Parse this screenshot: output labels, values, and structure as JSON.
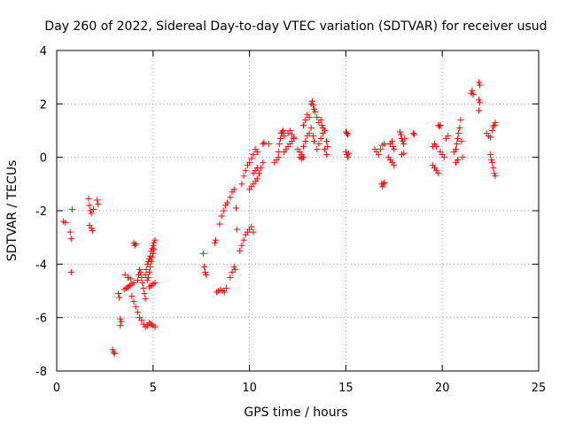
{
  "chart_data": {
    "type": "scatter",
    "title": "Day 260 of 2022, Sidereal Day-to-day VTEC variation (SDTVAR) for receiver usud",
    "xlabel": "GPS time / hours",
    "ylabel": "SDTVAR / TECUs",
    "xlim": [
      0,
      25
    ],
    "ylim": [
      -8,
      4
    ],
    "xticks": [
      0,
      5,
      10,
      15,
      20,
      25
    ],
    "yticks": [
      -8,
      -6,
      -4,
      -2,
      0,
      2,
      4
    ],
    "xtick_labels": [
      "0",
      "5",
      "10",
      "15",
      "20",
      "25"
    ],
    "ytick_labels": [
      "-8",
      "-6",
      "-4",
      "-2",
      "0",
      "2",
      "4"
    ],
    "grid": true,
    "marker": "+",
    "color": "#ff0000",
    "series": [
      {
        "name": "SDTVAR",
        "points": [
          [
            0.35,
            -2.4
          ],
          [
            0.45,
            -2.45
          ],
          [
            0.7,
            -2.8
          ],
          [
            0.75,
            -3.05
          ],
          [
            0.75,
            -4.3
          ],
          [
            0.8,
            -1.95
          ],
          [
            1.65,
            -1.55
          ],
          [
            1.7,
            -1.8
          ],
          [
            1.75,
            -2.0
          ],
          [
            1.8,
            -2.1
          ],
          [
            1.7,
            -2.55
          ],
          [
            1.8,
            -2.65
          ],
          [
            1.85,
            -2.75
          ],
          [
            1.9,
            -1.95
          ],
          [
            2.1,
            -1.6
          ],
          [
            2.15,
            -1.75
          ],
          [
            2.9,
            -7.2
          ],
          [
            2.95,
            -7.3
          ],
          [
            3.0,
            -7.35
          ],
          [
            3.2,
            -5.1
          ],
          [
            3.25,
            -5.25
          ],
          [
            3.3,
            -6.05
          ],
          [
            3.3,
            -6.3
          ],
          [
            3.35,
            -6.15
          ],
          [
            3.5,
            -4.95
          ],
          [
            3.6,
            -4.9
          ],
          [
            3.7,
            -4.85
          ],
          [
            3.8,
            -4.8
          ],
          [
            3.9,
            -4.75
          ],
          [
            4.0,
            -4.7
          ],
          [
            3.55,
            -4.4
          ],
          [
            3.7,
            -4.5
          ],
          [
            3.85,
            -4.55
          ],
          [
            4.0,
            -3.2
          ],
          [
            4.05,
            -3.3
          ],
          [
            4.1,
            -3.25
          ],
          [
            3.9,
            -5.2
          ],
          [
            4.0,
            -5.4
          ],
          [
            4.1,
            -5.6
          ],
          [
            4.2,
            -5.8
          ],
          [
            4.3,
            -6.0
          ],
          [
            4.4,
            -6.1
          ],
          [
            4.5,
            -6.25
          ],
          [
            4.6,
            -6.35
          ],
          [
            4.7,
            -6.3
          ],
          [
            4.8,
            -6.2
          ],
          [
            4.9,
            -6.25
          ],
          [
            5.0,
            -6.3
          ],
          [
            5.1,
            -6.35
          ],
          [
            4.2,
            -4.6
          ],
          [
            4.25,
            -4.4
          ],
          [
            4.3,
            -4.2
          ],
          [
            4.35,
            -4.3
          ],
          [
            4.4,
            -4.5
          ],
          [
            4.45,
            -4.7
          ],
          [
            4.5,
            -4.9
          ],
          [
            4.55,
            -5.1
          ],
          [
            4.6,
            -5.3
          ],
          [
            4.6,
            -4.4
          ],
          [
            4.65,
            -4.2
          ],
          [
            4.7,
            -4.0
          ],
          [
            4.75,
            -3.9
          ],
          [
            4.8,
            -3.8
          ],
          [
            4.85,
            -3.7
          ],
          [
            4.9,
            -3.5
          ],
          [
            4.95,
            -3.4
          ],
          [
            5.0,
            -3.3
          ],
          [
            5.05,
            -3.2
          ],
          [
            5.1,
            -3.1
          ],
          [
            4.7,
            -4.6
          ],
          [
            4.75,
            -4.5
          ],
          [
            4.8,
            -4.3
          ],
          [
            4.85,
            -4.1
          ],
          [
            4.9,
            -3.9
          ],
          [
            4.95,
            -3.75
          ],
          [
            5.0,
            -3.6
          ],
          [
            5.05,
            -3.45
          ],
          [
            4.8,
            -4.85
          ],
          [
            4.9,
            -4.8
          ],
          [
            5.0,
            -4.75
          ],
          [
            5.1,
            -4.7
          ],
          [
            7.6,
            -3.6
          ],
          [
            7.65,
            -4.1
          ],
          [
            7.7,
            -4.3
          ],
          [
            7.75,
            -4.4
          ],
          [
            8.2,
            -3.2
          ],
          [
            8.25,
            -3.1
          ],
          [
            8.3,
            -5.05
          ],
          [
            8.4,
            -5.0
          ],
          [
            8.5,
            -4.95
          ],
          [
            8.6,
            -5.0
          ],
          [
            8.7,
            -5.05
          ],
          [
            8.8,
            -4.9
          ],
          [
            8.45,
            -2.5
          ],
          [
            8.55,
            -2.2
          ],
          [
            8.65,
            -2.0
          ],
          [
            8.75,
            -1.8
          ],
          [
            8.85,
            -1.7
          ],
          [
            9.0,
            -4.5
          ],
          [
            9.1,
            -4.3
          ],
          [
            9.2,
            -4.1
          ],
          [
            9.25,
            -4.2
          ],
          [
            9.0,
            -1.5
          ],
          [
            9.1,
            -1.3
          ],
          [
            9.2,
            -1.2
          ],
          [
            9.3,
            -1.9
          ],
          [
            9.35,
            -2.7
          ],
          [
            9.5,
            -3.5
          ],
          [
            9.6,
            -3.3
          ],
          [
            9.7,
            -3.1
          ],
          [
            9.8,
            -2.9
          ],
          [
            9.9,
            -2.8
          ],
          [
            10.0,
            -2.7
          ],
          [
            10.1,
            -2.6
          ],
          [
            10.2,
            -2.8
          ],
          [
            9.6,
            -1.0
          ],
          [
            9.7,
            -0.7
          ],
          [
            9.8,
            -0.5
          ],
          [
            9.9,
            -0.3
          ],
          [
            10.0,
            -0.2
          ],
          [
            10.1,
            -0.05
          ],
          [
            10.2,
            0.1
          ],
          [
            10.3,
            0.3
          ],
          [
            10.4,
            0.2
          ],
          [
            10.0,
            -1.2
          ],
          [
            10.1,
            -1.1
          ],
          [
            10.2,
            -1.0
          ],
          [
            10.3,
            -0.9
          ],
          [
            10.4,
            -0.8
          ],
          [
            10.5,
            -0.6
          ],
          [
            10.6,
            -0.4
          ],
          [
            10.7,
            -0.2
          ],
          [
            10.2,
            -0.6
          ],
          [
            10.3,
            -0.5
          ],
          [
            10.4,
            -0.4
          ],
          [
            10.7,
            0.5
          ],
          [
            10.75,
            0.55
          ],
          [
            11.0,
            0.5
          ],
          [
            11.3,
            -0.2
          ],
          [
            11.4,
            -0.1
          ],
          [
            11.5,
            0.0
          ],
          [
            11.5,
            0.2
          ],
          [
            11.55,
            0.5
          ],
          [
            11.6,
            0.7
          ],
          [
            11.65,
            0.9
          ],
          [
            11.7,
            0.95
          ],
          [
            11.75,
            1.0
          ],
          [
            11.8,
            0.8
          ],
          [
            11.8,
            0.2
          ],
          [
            11.9,
            0.3
          ],
          [
            12.0,
            0.4
          ],
          [
            12.1,
            0.5
          ],
          [
            12.2,
            0.6
          ],
          [
            12.3,
            0.7
          ],
          [
            12.0,
            0.9
          ],
          [
            12.1,
            1.0
          ],
          [
            12.2,
            0.85
          ],
          [
            12.3,
            0.75
          ],
          [
            12.5,
            0.3
          ],
          [
            12.6,
            0.2
          ],
          [
            12.7,
            0.1
          ],
          [
            12.8,
            0.4
          ],
          [
            12.9,
            0.6
          ],
          [
            13.0,
            0.8
          ],
          [
            12.6,
            0.0
          ],
          [
            12.7,
            -0.05
          ],
          [
            12.8,
            0.0
          ],
          [
            12.8,
            1.2
          ],
          [
            12.9,
            1.4
          ],
          [
            13.0,
            1.6
          ],
          [
            13.1,
            1.5
          ],
          [
            13.1,
            0.9
          ],
          [
            13.2,
            1.1
          ],
          [
            13.3,
            0.8
          ],
          [
            13.35,
            0.6
          ],
          [
            13.2,
            2.0
          ],
          [
            13.25,
            2.1
          ],
          [
            13.3,
            1.95
          ],
          [
            13.35,
            1.8
          ],
          [
            13.4,
            1.7
          ],
          [
            13.5,
            1.5
          ],
          [
            13.6,
            1.3
          ],
          [
            13.5,
            0.3
          ],
          [
            13.6,
            0.5
          ],
          [
            13.7,
            0.7
          ],
          [
            13.8,
            0.9
          ],
          [
            13.9,
            1.0
          ],
          [
            14.0,
            0.6
          ],
          [
            14.05,
            0.4
          ],
          [
            13.7,
            1.4
          ],
          [
            13.75,
            1.2
          ],
          [
            13.8,
            1.1
          ],
          [
            13.9,
            0.3
          ],
          [
            14.0,
            0.1
          ],
          [
            15.0,
            0.95
          ],
          [
            15.05,
            0.9
          ],
          [
            15.1,
            0.85
          ],
          [
            15.0,
            0.2
          ],
          [
            15.05,
            0.1
          ],
          [
            15.1,
            0.0
          ],
          [
            15.15,
            0.15
          ],
          [
            16.5,
            0.3
          ],
          [
            16.6,
            0.2
          ],
          [
            16.7,
            0.1
          ],
          [
            16.8,
            0.3
          ],
          [
            16.9,
            0.45
          ],
          [
            17.0,
            0.5
          ],
          [
            16.85,
            -1.0
          ],
          [
            16.9,
            -1.1
          ],
          [
            16.95,
            -1.0
          ],
          [
            17.0,
            -0.95
          ],
          [
            17.2,
            0.0
          ],
          [
            17.3,
            -0.1
          ],
          [
            17.4,
            -0.2
          ],
          [
            17.5,
            -0.3
          ],
          [
            17.3,
            0.5
          ],
          [
            17.4,
            0.6
          ],
          [
            17.45,
            0.4
          ],
          [
            17.5,
            0.3
          ],
          [
            17.8,
            0.95
          ],
          [
            17.85,
            0.85
          ],
          [
            17.9,
            0.7
          ],
          [
            17.95,
            0.6
          ],
          [
            18.0,
            0.5
          ],
          [
            18.05,
            0.7
          ],
          [
            17.9,
            0.1
          ],
          [
            18.0,
            0.15
          ],
          [
            18.5,
            0.9
          ],
          [
            18.55,
            0.85
          ],
          [
            19.5,
            0.4
          ],
          [
            19.6,
            0.5
          ],
          [
            19.7,
            0.4
          ],
          [
            19.5,
            -0.3
          ],
          [
            19.6,
            -0.4
          ],
          [
            19.7,
            -0.5
          ],
          [
            19.8,
            -0.6
          ],
          [
            19.8,
            1.2
          ],
          [
            19.85,
            1.15
          ],
          [
            19.9,
            1.2
          ],
          [
            19.9,
            0.2
          ],
          [
            20.0,
            0.1
          ],
          [
            20.1,
            0.0
          ],
          [
            20.2,
            0.7
          ],
          [
            20.3,
            0.8
          ],
          [
            20.6,
            0.2
          ],
          [
            20.7,
            0.3
          ],
          [
            20.75,
            0.5
          ],
          [
            20.8,
            0.7
          ],
          [
            20.85,
            0.9
          ],
          [
            20.9,
            1.1
          ],
          [
            20.95,
            1.4
          ],
          [
            21.0,
            0.6
          ],
          [
            21.05,
            0.0
          ],
          [
            20.7,
            -0.2
          ],
          [
            20.8,
            -0.1
          ],
          [
            21.5,
            2.4
          ],
          [
            21.55,
            2.5
          ],
          [
            21.6,
            2.35
          ],
          [
            21.9,
            2.8
          ],
          [
            21.95,
            2.7
          ],
          [
            21.9,
            2.15
          ],
          [
            21.95,
            2.05
          ],
          [
            21.9,
            1.75
          ],
          [
            22.3,
            0.9
          ],
          [
            22.4,
            0.8
          ],
          [
            22.5,
            0.75
          ],
          [
            22.5,
            0.1
          ],
          [
            22.55,
            -0.1
          ],
          [
            22.6,
            -0.2
          ],
          [
            22.65,
            -0.4
          ],
          [
            22.7,
            -0.6
          ],
          [
            22.75,
            -0.7
          ],
          [
            22.6,
            1.0
          ],
          [
            22.65,
            1.15
          ],
          [
            22.7,
            1.2
          ],
          [
            22.75,
            1.3
          ]
        ]
      }
    ]
  }
}
